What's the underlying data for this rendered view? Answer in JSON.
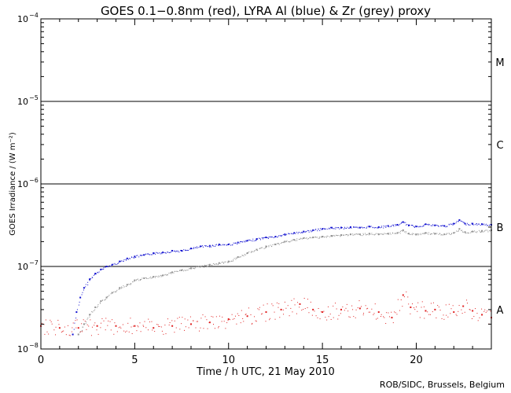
{
  "chart_data": {
    "type": "scatter",
    "title": "GOES 0.1−0.8nm (red), LYRA Al (blue) & Zr (grey) proxy",
    "xlabel": "Time / h UTC, 21 May 2010",
    "ylabel": "GOES Irradiance / (W m⁻²)",
    "y_scale": "log",
    "xlim": [
      0,
      24
    ],
    "ylim": [
      1e-08,
      0.0001
    ],
    "x_ticks": [
      0,
      5,
      10,
      15,
      20
    ],
    "x_tick_labels": [
      "0",
      "5",
      "10",
      "15",
      "20"
    ],
    "y_ticks": [
      1e-08,
      1e-07,
      1e-06,
      1e-05,
      0.0001
    ],
    "y_tick_base": "10",
    "y_tick_exponents": [
      "−8",
      "−7",
      "−6",
      "−5",
      "−4"
    ],
    "flare_class_lines": [
      1e-07,
      1e-06,
      1e-05
    ],
    "flare_classes": [
      {
        "label": "M",
        "y": 3e-05
      },
      {
        "label": "C",
        "y": 3e-06
      },
      {
        "label": "B",
        "y": 3e-07
      },
      {
        "label": "A",
        "y": 3e-08
      }
    ],
    "series": [
      {
        "color": "#1010d0",
        "x": [
          1.7,
          1.9,
          2.1,
          2.3,
          2.6,
          2.9,
          3.2,
          3.5,
          3.8,
          4.2,
          4.6,
          5.0,
          5.5,
          6.0,
          6.5,
          7.0,
          7.5,
          8.0,
          8.5,
          9.0,
          9.5,
          10.0,
          10.5,
          11.0,
          11.5,
          12.0,
          12.5,
          13.0,
          13.5,
          14.0,
          14.5,
          15.0,
          15.5,
          16.0,
          16.5,
          17.0,
          17.5,
          18.0,
          18.5,
          19.0,
          19.3,
          19.6,
          20.0,
          20.5,
          21.0,
          21.5,
          22.0,
          22.3,
          22.6,
          23.0,
          23.5,
          24.0
        ],
        "y": [
          1.5e-08,
          2.8e-08,
          4.2e-08,
          5.5e-08,
          7e-08,
          8.2e-08,
          9.2e-08,
          1e-07,
          1.05e-07,
          1.15e-07,
          1.25e-07,
          1.32e-07,
          1.38e-07,
          1.45e-07,
          1.48e-07,
          1.55e-07,
          1.55e-07,
          1.65e-07,
          1.75e-07,
          1.78e-07,
          1.85e-07,
          1.85e-07,
          1.95e-07,
          2.05e-07,
          2.15e-07,
          2.25e-07,
          2.3e-07,
          2.45e-07,
          2.55e-07,
          2.65e-07,
          2.75e-07,
          2.85e-07,
          2.95e-07,
          2.95e-07,
          3e-07,
          2.95e-07,
          3.05e-07,
          3e-07,
          3.1e-07,
          3.2e-07,
          3.45e-07,
          3.15e-07,
          3.05e-07,
          3.25e-07,
          3.15e-07,
          3.1e-07,
          3.3e-07,
          3.65e-07,
          3.3e-07,
          3.3e-07,
          3.25e-07,
          3.2e-07
        ]
      },
      {
        "color": "#909090",
        "x": [
          2.0,
          2.3,
          2.6,
          2.9,
          3.2,
          3.5,
          3.8,
          4.2,
          4.6,
          5.0,
          5.5,
          6.0,
          6.5,
          7.0,
          7.5,
          8.0,
          8.5,
          9.0,
          9.5,
          10.0,
          10.5,
          11.0,
          11.5,
          12.0,
          12.5,
          13.0,
          13.5,
          14.0,
          14.5,
          15.0,
          15.5,
          16.0,
          16.5,
          17.0,
          17.5,
          18.0,
          18.5,
          19.0,
          19.3,
          19.6,
          20.0,
          20.5,
          21.0,
          21.5,
          22.0,
          22.3,
          22.6,
          23.0,
          23.5,
          24.0
        ],
        "y": [
          1.5e-08,
          2e-08,
          2.6e-08,
          3.2e-08,
          3.8e-08,
          4.2e-08,
          4.8e-08,
          5.5e-08,
          6e-08,
          6.8e-08,
          7.2e-08,
          7.5e-08,
          7.8e-08,
          8.5e-08,
          9e-08,
          9.5e-08,
          1e-07,
          1.05e-07,
          1.1e-07,
          1.15e-07,
          1.3e-07,
          1.45e-07,
          1.6e-07,
          1.75e-07,
          1.85e-07,
          2e-07,
          2.1e-07,
          2.2e-07,
          2.25e-07,
          2.3e-07,
          2.35e-07,
          2.4e-07,
          2.45e-07,
          2.45e-07,
          2.5e-07,
          2.45e-07,
          2.5e-07,
          2.55e-07,
          2.75e-07,
          2.5e-07,
          2.45e-07,
          2.55e-07,
          2.5e-07,
          2.45e-07,
          2.55e-07,
          2.85e-07,
          2.6e-07,
          2.65e-07,
          2.7e-07,
          2.75e-07
        ]
      },
      {
        "color": "#e02020",
        "x": [
          0.0,
          1.0,
          2.0,
          3.0,
          4.0,
          5.0,
          6.0,
          7.0,
          8.0,
          9.0,
          10.0,
          11.0,
          12.0,
          12.8,
          13.8,
          14.5,
          15.0,
          16.0,
          17.0,
          18.0,
          18.7,
          19.3,
          19.7,
          20.5,
          21.0,
          22.0,
          22.5,
          23.0,
          23.5,
          24.0
        ],
        "y": [
          1.9e-08,
          1.8e-08,
          1.8e-08,
          1.9e-08,
          1.9e-08,
          1.9e-08,
          1.8e-08,
          1.9e-08,
          2e-08,
          2.1e-08,
          2.3e-08,
          2.5e-08,
          2.8e-08,
          3e-08,
          3.5e-08,
          3e-08,
          2.8e-08,
          3e-08,
          3.1e-08,
          2.8e-08,
          2.4e-08,
          4.5e-08,
          3.2e-08,
          2.9e-08,
          3e-08,
          2.8e-08,
          3.3e-08,
          2.9e-08,
          2.6e-08,
          2.4e-08
        ]
      }
    ]
  },
  "credit": "ROB/SIDC, Brussels, Belgium"
}
